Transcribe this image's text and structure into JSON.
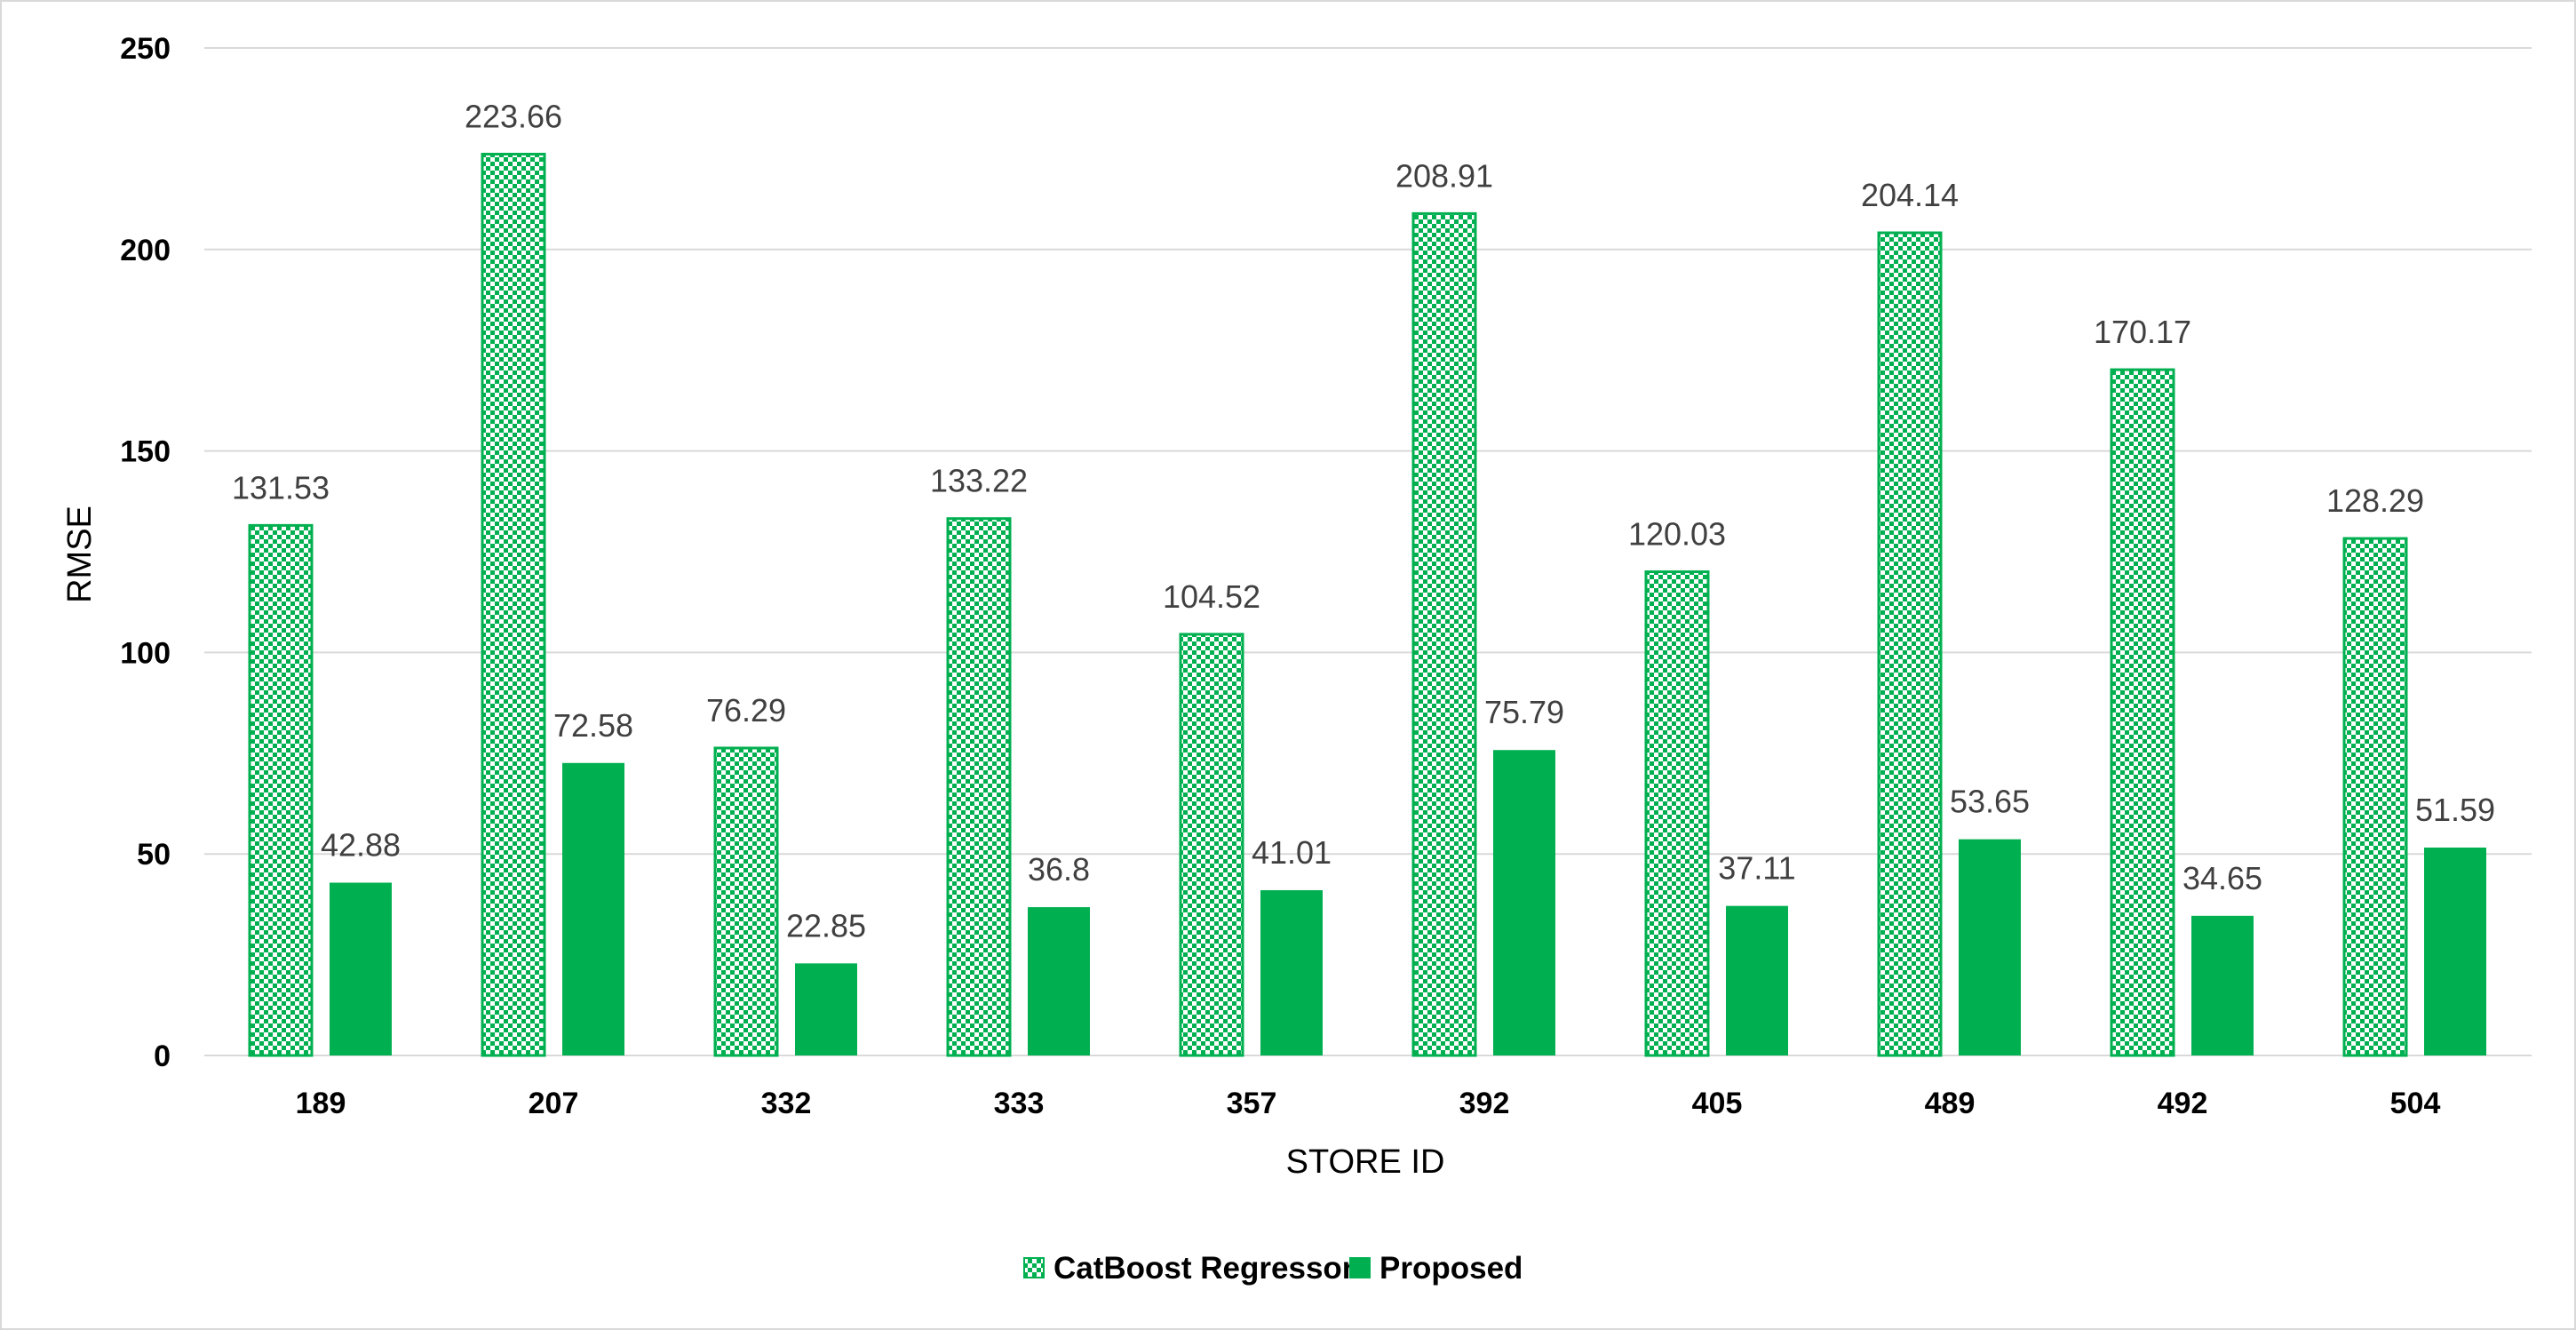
{
  "chart_data": {
    "type": "bar",
    "title": "",
    "xlabel": "STORE ID",
    "ylabel": "RMSE",
    "categories": [
      "189",
      "207",
      "332",
      "333",
      "357",
      "392",
      "405",
      "489",
      "492",
      "504"
    ],
    "series": [
      {
        "name": "CatBoost Regressor",
        "values": [
          131.53,
          223.66,
          76.29,
          133.22,
          104.52,
          208.91,
          120.03,
          204.14,
          170.17,
          128.29
        ],
        "color": "#00b050",
        "pattern": "checkerboard"
      },
      {
        "name": "Proposed",
        "values": [
          42.88,
          72.58,
          22.85,
          36.8,
          41.01,
          75.79,
          37.11,
          53.65,
          34.65,
          51.59
        ],
        "color": "#00b050",
        "pattern": "solid"
      }
    ],
    "ylim": [
      0,
      250
    ],
    "yticks": [
      0,
      50,
      100,
      150,
      200,
      250
    ],
    "grid": true,
    "legend_position": "bottom",
    "data_labels": true
  }
}
